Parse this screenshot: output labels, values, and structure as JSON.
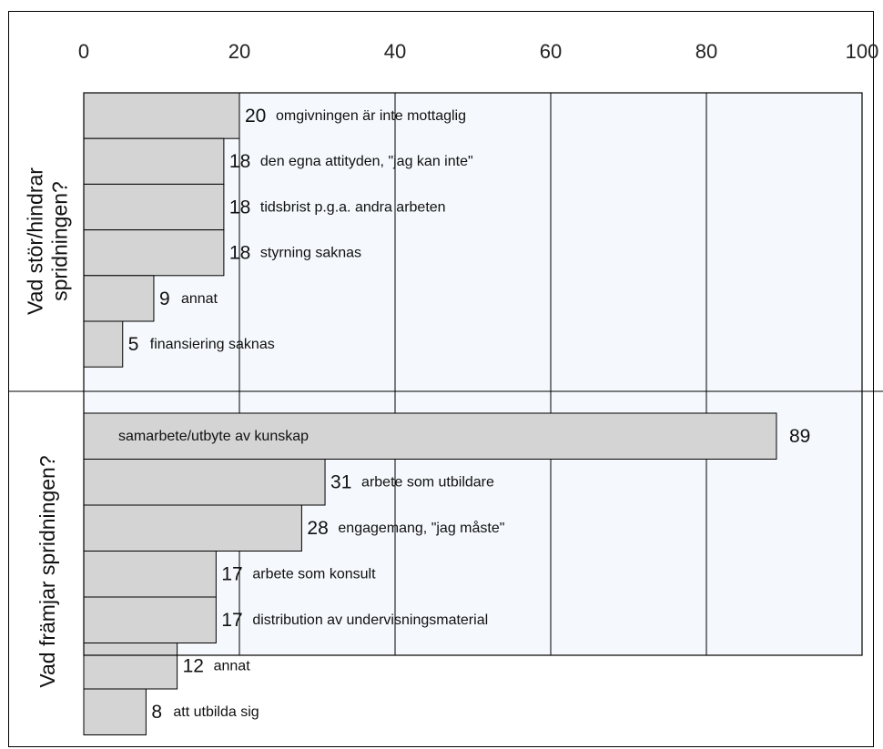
{
  "chart_data": {
    "type": "bar",
    "orientation": "horizontal",
    "xlim": [
      0,
      100
    ],
    "xticks": [
      0,
      20,
      40,
      60,
      80,
      100
    ],
    "grid": true,
    "colors": {
      "bar": "#d4d4d4",
      "plot_bg": "#f5f8fc",
      "border": "#000000"
    },
    "groups": [
      {
        "label": "Vad stör/hindrar spridningen?",
        "label_lines": [
          "Vad stör/hindrar",
          "spridningen?"
        ],
        "items": [
          {
            "label": "omgivningen är inte mottaglig",
            "value": 20
          },
          {
            "label": "den egna attityden, \"jag kan inte\"",
            "value": 18
          },
          {
            "label": "tidsbrist p.g.a. andra arbeten",
            "value": 18
          },
          {
            "label": "styrning saknas",
            "value": 18
          },
          {
            "label": "annat",
            "value": 9
          },
          {
            "label": "finansiering saknas",
            "value": 5
          }
        ]
      },
      {
        "label": "Vad främjar spridningen?",
        "label_lines": [
          "Vad främjar spridningen?"
        ],
        "items": [
          {
            "label": "samarbete/utbyte av kunskap",
            "value": 89
          },
          {
            "label": "arbete som utbildare",
            "value": 31
          },
          {
            "label": "engagemang, \"jag måste\"",
            "value": 28
          },
          {
            "label": "arbete som konsult",
            "value": 17
          },
          {
            "label": "distribution av undervisningsmaterial",
            "value": 17
          },
          {
            "label": "annat",
            "value": 12
          },
          {
            "label": "att utbilda sig",
            "value": 8
          }
        ]
      }
    ]
  }
}
